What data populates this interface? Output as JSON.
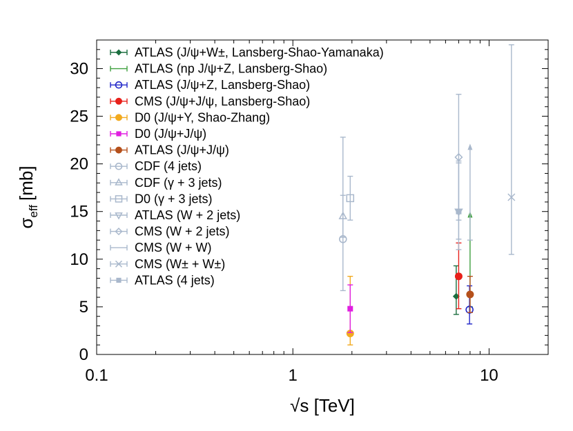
{
  "chart_data": {
    "type": "scatter",
    "title": "",
    "xlabel": "√s [TeV]",
    "ylabel": "σ",
    "ylabel_sub": "eff",
    "ylabel_unit": "[mb]",
    "x_scale": "log",
    "xlim": [
      0.1,
      20
    ],
    "ylim": [
      0,
      33
    ],
    "x_ticks": [
      {
        "value": 0.1,
        "label": "0.1"
      },
      {
        "value": 1,
        "label": "1"
      },
      {
        "value": 10,
        "label": "10"
      }
    ],
    "y_ticks": [
      {
        "value": 0,
        "label": "0"
      },
      {
        "value": 5,
        "label": "5"
      },
      {
        "value": 10,
        "label": "10"
      },
      {
        "value": 15,
        "label": "15"
      },
      {
        "value": 20,
        "label": "20"
      },
      {
        "value": 25,
        "label": "25"
      },
      {
        "value": 30,
        "label": "30"
      }
    ],
    "legend_position": "top-left",
    "series": [
      {
        "name": "ATLAS (J/ψ+W±, Lansberg-Shao-Yamanaka)",
        "color": "#1b6e3f",
        "marker": "diamond-filled",
        "points": [
          {
            "x": 6.8,
            "y": 6.1,
            "ylow": 4.2,
            "yhigh": 9.3,
            "limit": "none"
          }
        ]
      },
      {
        "name": "ATLAS (np J/ψ+Z, Lansberg-Shao)",
        "color": "#3ea03e",
        "marker": "none",
        "points": [
          {
            "x": 8.0,
            "y": 5.0,
            "ylow": 5.0,
            "yhigh": 14.8,
            "limit": "lower"
          }
        ]
      },
      {
        "name": "ATLAS (J/ψ+Z, Lansberg-Shao)",
        "color": "#1f25c8",
        "marker": "circle-open",
        "points": [
          {
            "x": 7.95,
            "y": 4.7,
            "ylow": 3.2,
            "yhigh": 7.2,
            "limit": "none"
          }
        ]
      },
      {
        "name": "CMS (J/ψ+J/ψ, Lansberg-Shao)",
        "color": "#e8211b",
        "marker": "circle-filled",
        "points": [
          {
            "x": 7.0,
            "y": 8.2,
            "ylow": 4.8,
            "yhigh": 11.7,
            "limit": "none"
          }
        ]
      },
      {
        "name": "D0 (J/ψ+Υ, Shao-Zhang)",
        "color": "#f2aa1f",
        "marker": "circle-filled",
        "points": [
          {
            "x": 1.96,
            "y": 2.2,
            "ylow": 1.0,
            "yhigh": 8.2,
            "limit": "none"
          }
        ]
      },
      {
        "name": "D0 (J/ψ+J/ψ)",
        "color": "#e01fe0",
        "marker": "square-filled",
        "points": [
          {
            "x": 1.96,
            "y": 4.8,
            "ylow": 2.3,
            "yhigh": 7.3,
            "limit": "none"
          }
        ]
      },
      {
        "name": "ATLAS (J/ψ+J/ψ)",
        "color": "#b5501b",
        "marker": "circle-filled",
        "points": [
          {
            "x": 8.0,
            "y": 6.3,
            "ylow": 4.4,
            "yhigh": 8.2,
            "limit": "none"
          }
        ]
      },
      {
        "name": "CDF (4 jets)",
        "color": "#a9b8cc",
        "marker": "circle-open",
        "points": [
          {
            "x": 1.8,
            "y": 12.1,
            "ylow": 6.7,
            "yhigh": 22.8,
            "limit": "none"
          }
        ]
      },
      {
        "name": "CDF (γ + 3 jets)",
        "color": "#a9b8cc",
        "marker": "triangle-up-open",
        "points": [
          {
            "x": 1.8,
            "y": 14.5,
            "ylow": 12.3,
            "yhigh": 16.7,
            "limit": "none"
          }
        ]
      },
      {
        "name": "D0 (γ + 3 jets)",
        "color": "#a9b8cc",
        "marker": "square-open",
        "points": [
          {
            "x": 1.96,
            "y": 16.4,
            "ylow": 14.1,
            "yhigh": 18.7,
            "limit": "none"
          }
        ]
      },
      {
        "name": "ATLAS (W + 2 jets)",
        "color": "#a9b8cc",
        "marker": "triangle-down-open",
        "points": [
          {
            "x": 7.0,
            "y": 15.0,
            "ylow": 12.1,
            "yhigh": 20.3,
            "limit": "none"
          }
        ]
      },
      {
        "name": "CMS (W + 2 jets)",
        "color": "#a9b8cc",
        "marker": "diamond-open",
        "points": [
          {
            "x": 7.0,
            "y": 20.7,
            "ylow": 14.1,
            "yhigh": 27.3,
            "limit": "none"
          }
        ]
      },
      {
        "name": "CMS (W + W)",
        "color": "#a9b8cc",
        "marker": "none",
        "points": [
          {
            "x": 8.0,
            "y": 12.0,
            "ylow": 12.0,
            "yhigh": 21.9,
            "limit": "lower"
          }
        ]
      },
      {
        "name": "CMS (W± + W±)",
        "color": "#a9b8cc",
        "marker": "x",
        "points": [
          {
            "x": 13.0,
            "y": 16.5,
            "ylow": 10.5,
            "yhigh": 32.5,
            "limit": "none"
          }
        ]
      },
      {
        "name": "ATLAS (4 jets)",
        "color": "#a9b8cc",
        "marker": "square-filled",
        "points": [
          {
            "x": 7.0,
            "y": 15.0,
            "ylow": 11.0,
            "yhigh": 20.1,
            "limit": "none"
          }
        ]
      }
    ]
  }
}
